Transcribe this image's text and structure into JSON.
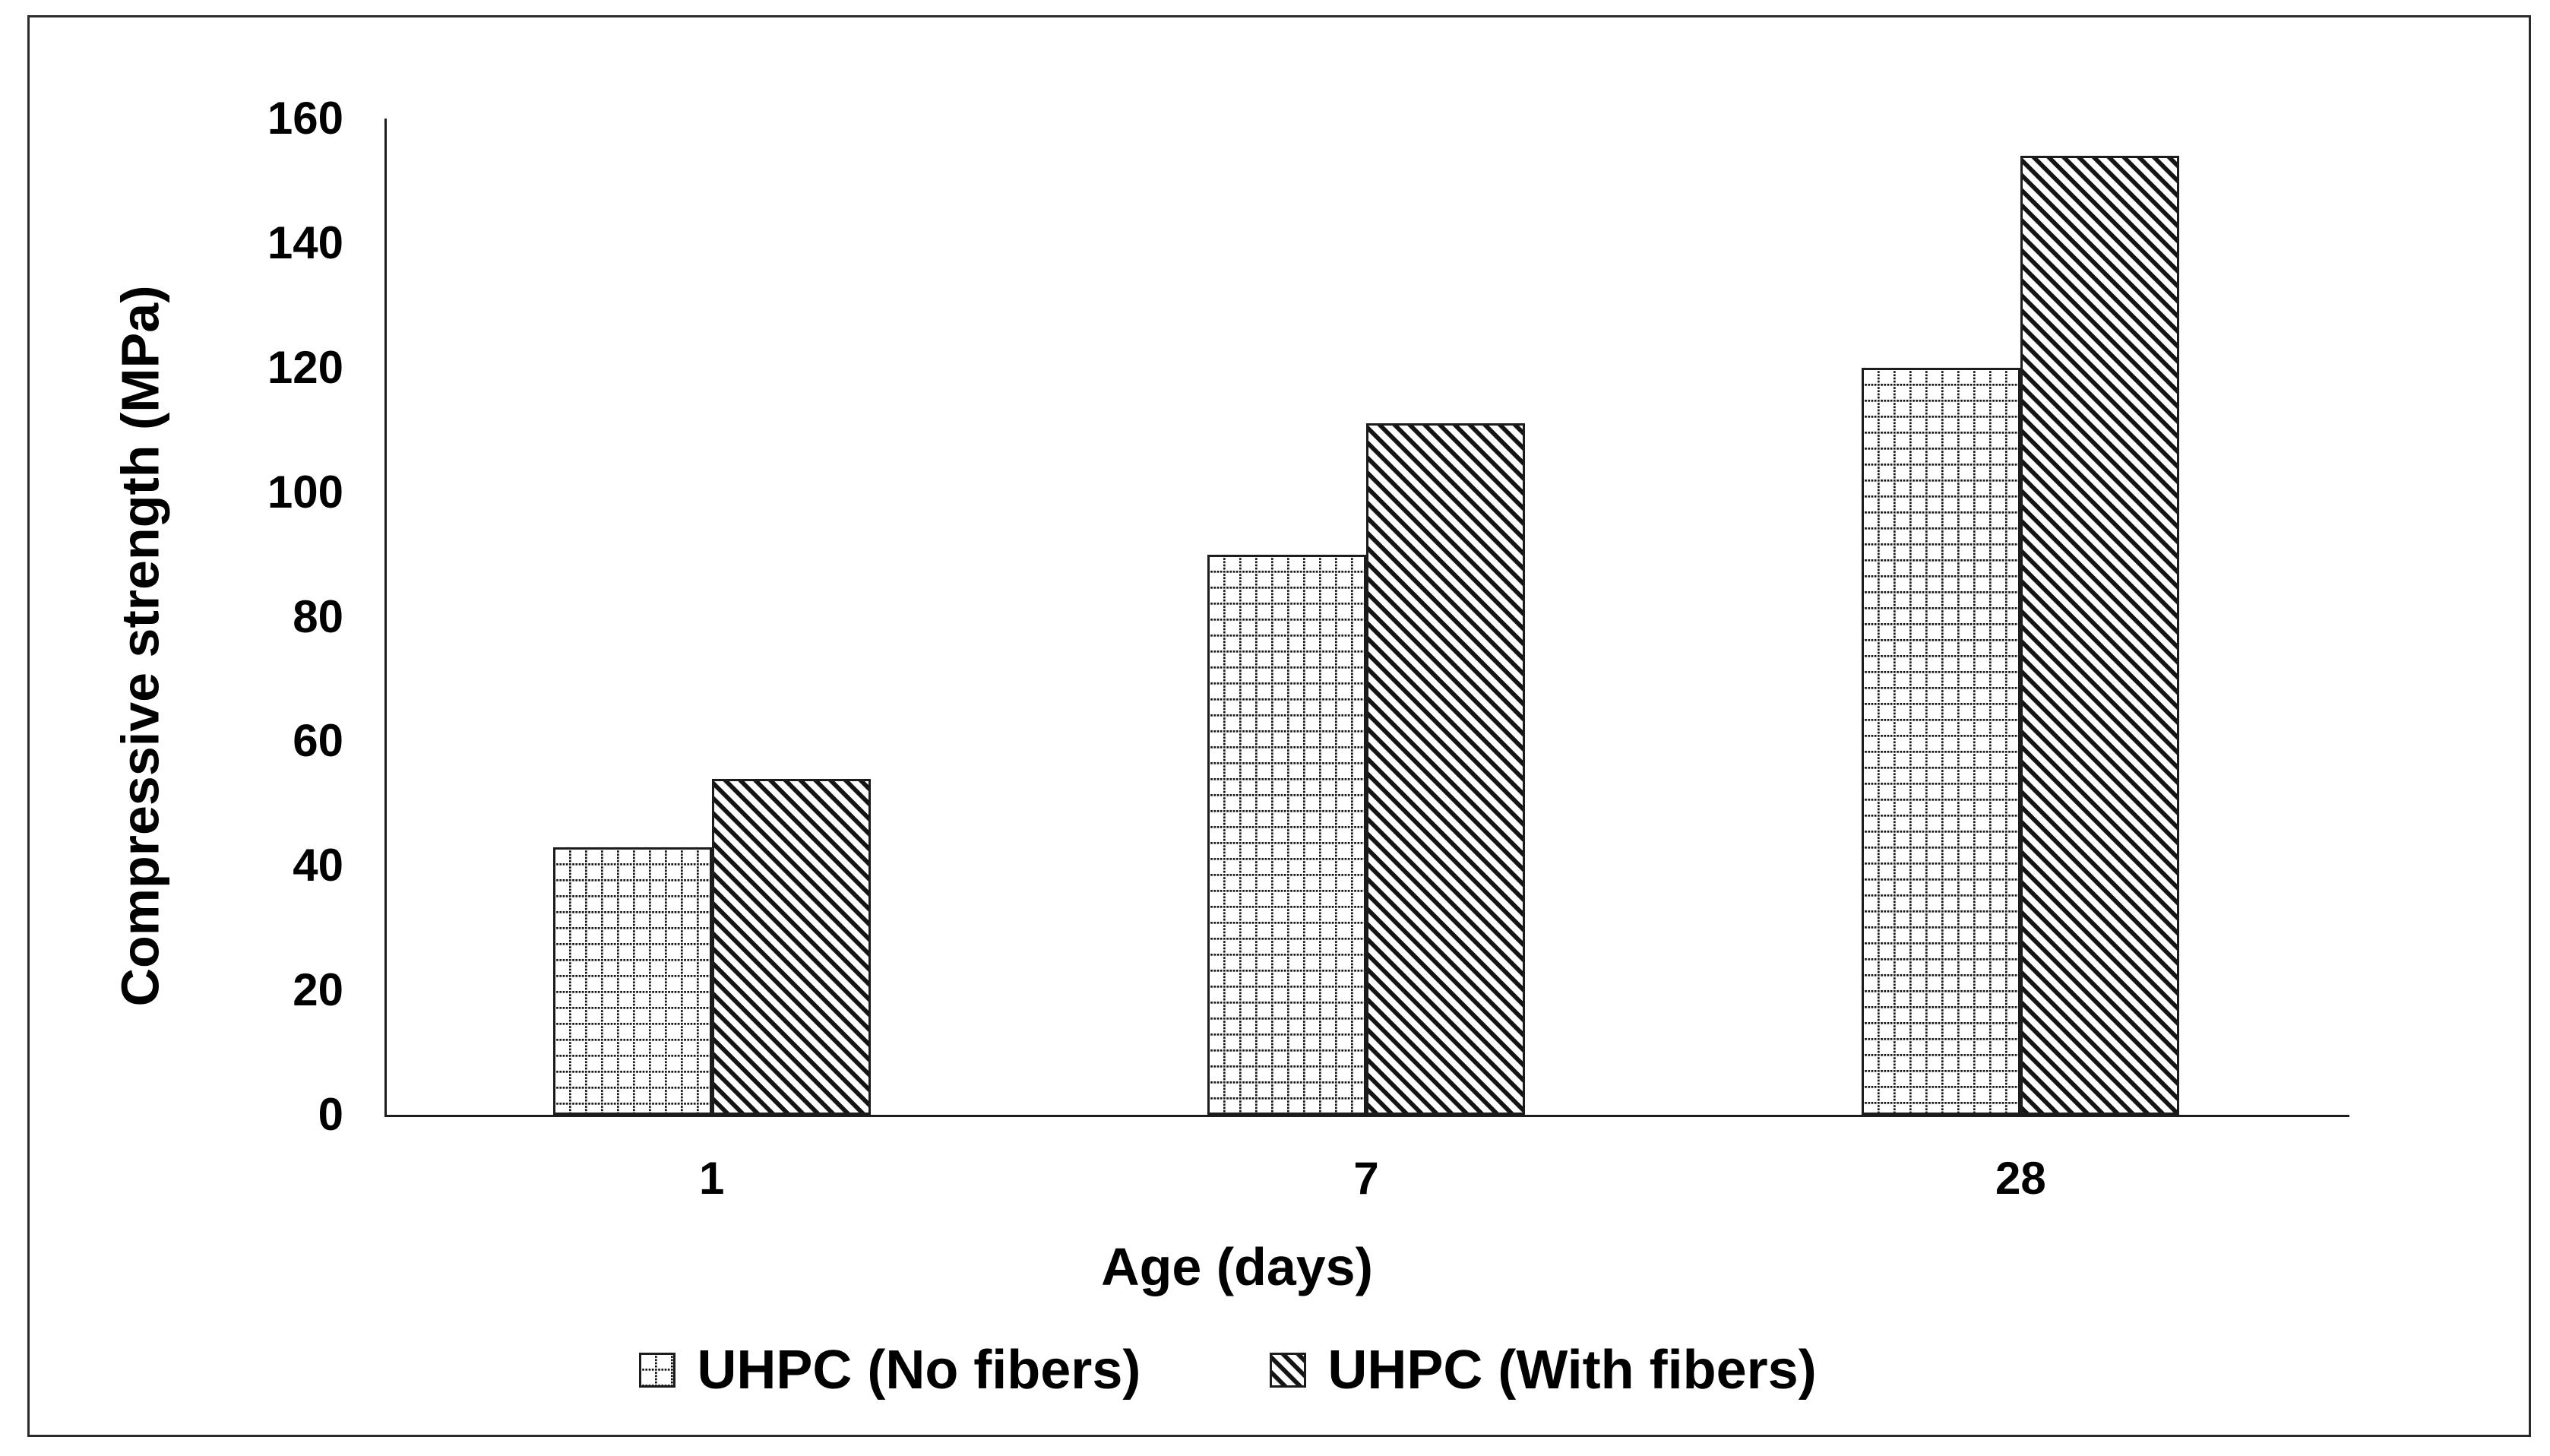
{
  "chart_data": {
    "type": "bar",
    "title": "",
    "categories": [
      "1",
      "7",
      "28"
    ],
    "series": [
      {
        "name": "UHPC (No fibers)",
        "key": "uhpc-no-fibers",
        "pattern": "dotted-grid",
        "values": [
          43,
          90,
          120
        ]
      },
      {
        "name": "UHPC (With fibers)",
        "key": "uhpc-with-fibers",
        "pattern": "diagonal-stripes",
        "values": [
          54,
          111,
          154
        ]
      }
    ],
    "xlabel": "Age (days)",
    "ylabel": "Compressive strength (MPa)",
    "ylim": [
      0,
      160
    ],
    "ytick_step": 20,
    "ytick_labels": [
      "0",
      "20",
      "40",
      "60",
      "80",
      "100",
      "120",
      "140",
      "160"
    ],
    "grid": false,
    "legend_position": "bottom-center",
    "colors": {
      "foreground": "#000000",
      "background": "#ffffff",
      "bar_outline": "#1c1c1c"
    }
  },
  "legend": {
    "items": [
      {
        "label": "UHPC (No fibers)",
        "swatch": "dotted-grid-swatch"
      },
      {
        "label": "UHPC (With fibers)",
        "swatch": "diagonal-stripes-swatch"
      }
    ]
  }
}
